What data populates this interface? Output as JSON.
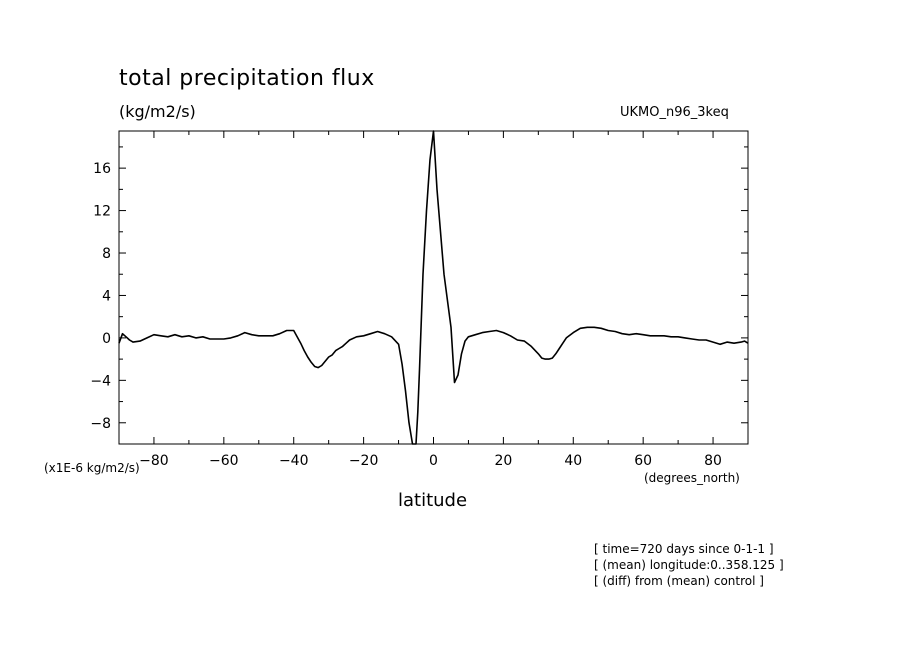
{
  "chart_data": {
    "type": "line",
    "title": "total precipitation flux",
    "units": "(kg/m2/s)",
    "model_label": "UKMO_n96_3keq",
    "y_scale_label": "(x1E-6 kg/m2/s)",
    "x_units_label": "(degrees_north)",
    "xlabel": "latitude",
    "xlim": [
      -90,
      90
    ],
    "ylim": [
      -10,
      19.5
    ],
    "x_ticks": [
      -80,
      -60,
      -40,
      -20,
      0,
      20,
      40,
      60,
      80
    ],
    "y_ticks": [
      -8,
      -4,
      0,
      4,
      8,
      12,
      16
    ],
    "grid": false,
    "series": [
      {
        "x": [
          -90,
          -89,
          -88,
          -87,
          -86,
          -84,
          -82,
          -80,
          -78,
          -76,
          -74,
          -72,
          -70,
          -68,
          -66,
          -64,
          -62,
          -60,
          -58,
          -56,
          -54,
          -52,
          -50,
          -48,
          -46,
          -44,
          -42,
          -40,
          -38,
          -37,
          -36,
          -35,
          -34,
          -33,
          -32,
          -31,
          -30,
          -29,
          -28,
          -27,
          -26,
          -25,
          -24,
          -22,
          -20,
          -18,
          -16,
          -14,
          -12,
          -10,
          -9,
          -8,
          -7,
          -6,
          -5,
          -4.5,
          -4,
          -3,
          -2,
          -1,
          0,
          1,
          2,
          3,
          4,
          5,
          6,
          7,
          8,
          9,
          10,
          12,
          14,
          16,
          18,
          20,
          22,
          24,
          26,
          28,
          30,
          31,
          32,
          33,
          34,
          35,
          36,
          37,
          38,
          40,
          42,
          44,
          46,
          48,
          50,
          52,
          54,
          56,
          58,
          60,
          62,
          64,
          66,
          68,
          70,
          72,
          74,
          76,
          78,
          80,
          82,
          84,
          86,
          88,
          89,
          90
        ],
        "y": [
          -0.5,
          0.4,
          0.1,
          -0.2,
          -0.4,
          -0.3,
          0.0,
          0.3,
          0.2,
          0.1,
          0.3,
          0.1,
          0.2,
          0.0,
          0.1,
          -0.1,
          -0.1,
          -0.1,
          0.0,
          0.2,
          0.5,
          0.3,
          0.2,
          0.2,
          0.2,
          0.4,
          0.7,
          0.7,
          -0.5,
          -1.2,
          -1.8,
          -2.3,
          -2.7,
          -2.8,
          -2.6,
          -2.2,
          -1.8,
          -1.6,
          -1.2,
          -1.0,
          -0.8,
          -0.5,
          -0.2,
          0.1,
          0.2,
          0.4,
          0.6,
          0.4,
          0.1,
          -0.6,
          -2.5,
          -5.0,
          -8.0,
          -10.0,
          -10.0,
          -7.0,
          -3.0,
          6.0,
          12.0,
          16.8,
          19.5,
          14.0,
          10.0,
          6.0,
          3.5,
          1.0,
          -4.2,
          -3.5,
          -1.5,
          -0.3,
          0.1,
          0.3,
          0.5,
          0.6,
          0.7,
          0.5,
          0.2,
          -0.2,
          -0.3,
          -0.8,
          -1.5,
          -1.9,
          -2.0,
          -2.0,
          -1.9,
          -1.5,
          -1.0,
          -0.5,
          0.0,
          0.5,
          0.9,
          1.0,
          1.0,
          0.9,
          0.7,
          0.6,
          0.4,
          0.3,
          0.4,
          0.3,
          0.2,
          0.2,
          0.2,
          0.1,
          0.1,
          0.0,
          -0.1,
          -0.2,
          -0.2,
          -0.4,
          -0.6,
          -0.4,
          -0.5,
          -0.4,
          -0.3,
          -0.5
        ]
      }
    ]
  },
  "annotations": [
    "[ time=720 days since 0-1-1 ]",
    "[ (mean) longitude:0..358.125 ]",
    "[ (diff) from (mean) control ]"
  ]
}
